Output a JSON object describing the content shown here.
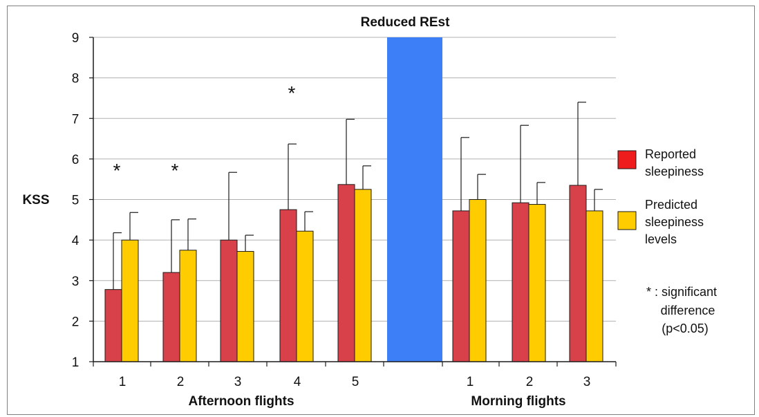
{
  "chart_data": {
    "type": "bar",
    "title": "Reduced REst",
    "ylabel": "KSS",
    "ylim": [
      1,
      9
    ],
    "yticks": [
      "1",
      "2",
      "3",
      "4",
      "5",
      "6",
      "7",
      "8",
      "9"
    ],
    "grid": true,
    "groups": [
      {
        "label": "Afternoon flights",
        "categories": [
          "1",
          "2",
          "3",
          "4",
          "5"
        ]
      },
      {
        "label": "Morning flights",
        "categories": [
          "1",
          "2",
          "3"
        ]
      }
    ],
    "series": [
      {
        "name": "Reported sleepiness",
        "color": "#d9414a",
        "values": [
          2.78,
          3.2,
          4.0,
          4.75,
          5.37,
          4.72,
          4.92,
          5.35
        ],
        "error_upper": [
          4.18,
          4.5,
          5.67,
          6.37,
          6.98,
          6.53,
          6.83,
          7.4
        ]
      },
      {
        "name": "Predicted sleepiness levels",
        "color": "#ffcc00",
        "values": [
          4.0,
          3.75,
          3.72,
          4.22,
          5.25,
          5.0,
          4.88,
          4.72
        ],
        "error_upper": [
          4.68,
          4.52,
          4.12,
          4.7,
          5.83,
          5.62,
          5.42,
          5.25
        ]
      }
    ],
    "significant": [
      true,
      true,
      false,
      true,
      false,
      false,
      false,
      false
    ],
    "significance_marker": "*",
    "rest_bar": {
      "color": "#3c7ff6"
    },
    "legend": {
      "position": "right",
      "items": [
        {
          "label_lines": [
            "Reported",
            "sleepiness"
          ],
          "color": "#ee1c1c"
        },
        {
          "label_lines": [
            "Predicted",
            "sleepiness",
            "levels"
          ],
          "color": "#ffcc00"
        }
      ],
      "note_lines": [
        "* : significant",
        "difference",
        "(p<0.05)"
      ]
    }
  }
}
